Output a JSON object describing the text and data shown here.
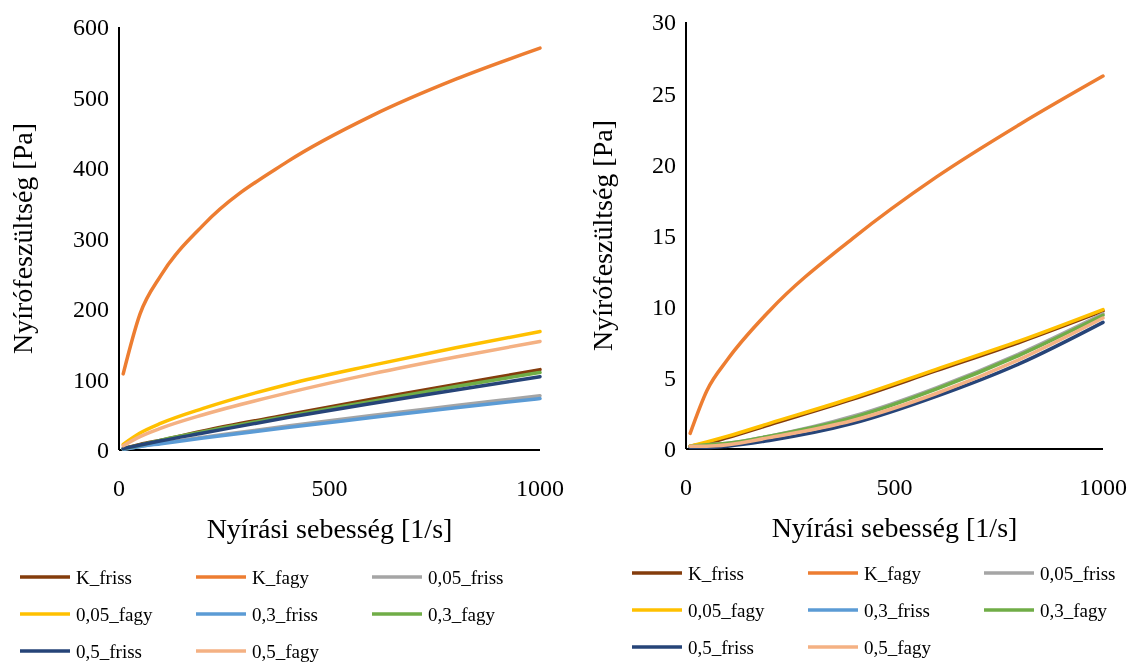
{
  "chart_data": [
    {
      "type": "line",
      "xlabel": "Nyírási sebesség [1/s]",
      "ylabel": "Nyírófeszültség [Pa]",
      "x": [
        10,
        50,
        100,
        200,
        400,
        600,
        800,
        1000
      ],
      "xlim": [
        0,
        1000
      ],
      "xticks": [
        0,
        500,
        1000
      ],
      "ylim": [
        0,
        600
      ],
      "yticks": [
        0,
        100,
        200,
        300,
        400,
        500,
        600
      ],
      "grid": false,
      "legend": "bottom",
      "series": [
        {
          "name": "K_friss",
          "color": "#843c0c",
          "values": [
            2,
            8,
            14,
            27,
            50,
            72,
            93,
            114
          ]
        },
        {
          "name": "K_fagy",
          "color": "#ed7d31",
          "values": [
            108,
            193,
            248,
            319,
            409,
            474,
            526,
            570
          ]
        },
        {
          "name": "0,05_friss",
          "color": "#a5a5a5",
          "values": [
            1,
            5,
            10,
            18,
            34,
            49,
            63,
            77
          ]
        },
        {
          "name": "0,05_fagy",
          "color": "#ffc000",
          "values": [
            8,
            24,
            38,
            59,
            93,
            120,
            145,
            168
          ]
        },
        {
          "name": "0,3_friss",
          "color": "#5b9bd5",
          "values": [
            1,
            5,
            9,
            17,
            32,
            46,
            60,
            73
          ]
        },
        {
          "name": "0,3_fagy",
          "color": "#70ad47",
          "values": [
            2,
            7,
            14,
            26,
            48,
            69,
            90,
            110
          ]
        },
        {
          "name": "0,5_friss",
          "color": "#264478",
          "values": [
            2,
            7,
            13,
            24,
            46,
            66,
            85,
            104
          ]
        },
        {
          "name": "0,5_fagy",
          "color": "#f4b183",
          "values": [
            6,
            19,
            31,
            50,
            81,
            108,
            132,
            154
          ]
        }
      ]
    },
    {
      "type": "line",
      "xlabel": "Nyírási sebesség [1/s]",
      "ylabel": "Nyírófeszültség [Pa]",
      "x": [
        10,
        50,
        100,
        200,
        400,
        600,
        800,
        1000
      ],
      "xlim": [
        0,
        1000
      ],
      "xticks": [
        0,
        500,
        1000
      ],
      "ylim": [
        0,
        30
      ],
      "yticks": [
        0,
        5,
        10,
        15,
        20,
        25,
        30
      ],
      "grid": false,
      "legend": "bottom",
      "series": [
        {
          "name": "K_friss",
          "color": "#843c0c",
          "values": [
            0.2,
            0.4,
            0.8,
            1.7,
            3.5,
            5.5,
            7.5,
            9.7
          ]
        },
        {
          "name": "K_fagy",
          "color": "#ed7d31",
          "values": [
            1.1,
            4.1,
            6.3,
            9.7,
            14.8,
            19.1,
            22.8,
            26.2
          ]
        },
        {
          "name": "0,05_friss",
          "color": "#a5a5a5",
          "values": [
            0.2,
            0.3,
            0.4,
            0.9,
            2.3,
            4.3,
            6.7,
            9.5
          ]
        },
        {
          "name": "0,05_fagy",
          "color": "#ffc000",
          "values": [
            0.2,
            0.5,
            0.9,
            1.8,
            3.6,
            5.6,
            7.6,
            9.8
          ]
        },
        {
          "name": "0,3_friss",
          "color": "#5b9bd5",
          "values": [
            null,
            null,
            null,
            null,
            null,
            null,
            null,
            null
          ]
        },
        {
          "name": "0,3_fagy",
          "color": "#70ad47",
          "values": [
            0.2,
            0.3,
            0.4,
            0.9,
            2.2,
            4.2,
            6.6,
            9.4
          ]
        },
        {
          "name": "0,5_friss",
          "color": "#264478",
          "values": [
            0.1,
            0.1,
            0.2,
            0.6,
            1.8,
            3.7,
            6.0,
            8.9
          ]
        },
        {
          "name": "0,5_fagy",
          "color": "#f4b183",
          "values": [
            0.2,
            0.2,
            0.3,
            0.8,
            2.0,
            3.9,
            6.3,
            9.2
          ]
        }
      ]
    }
  ]
}
